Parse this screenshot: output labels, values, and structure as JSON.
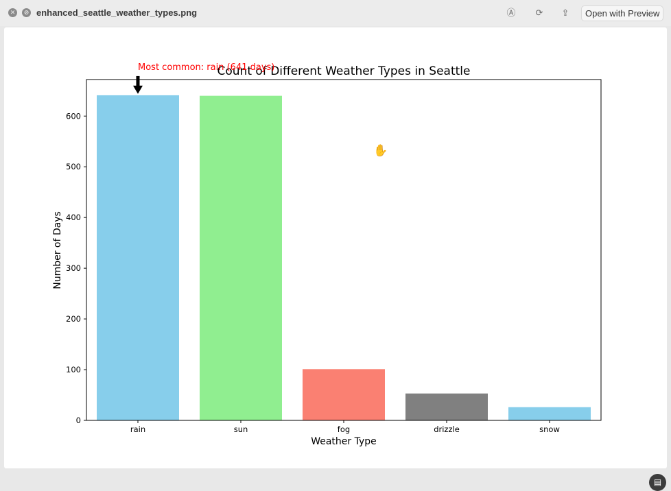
{
  "window": {
    "title": "enhanced_seattle_weather_types.png",
    "open_with_label": "Open with Preview",
    "icons": [
      "close-icon",
      "minimize-icon",
      "markup-icon",
      "rotate-icon",
      "share-icon",
      "live-text-icon",
      "hand-cursor-icon"
    ]
  },
  "chart_data": {
    "type": "bar",
    "title": "Count of Different Weather Types in Seattle",
    "xlabel": "Weather Type",
    "ylabel": "Number of Days",
    "categories": [
      "rain",
      "sun",
      "fog",
      "drizzle",
      "snow"
    ],
    "values": [
      641,
      640,
      101,
      53,
      26
    ],
    "colors": [
      "#87ceeb",
      "#90ee90",
      "#fa8072",
      "#808080",
      "#87ceeb"
    ],
    "ylim": [
      0,
      672
    ],
    "yticks": [
      0,
      100,
      200,
      300,
      400,
      500,
      600
    ],
    "grid": false,
    "annotation": {
      "text": "Most common: rain (641 days)",
      "category": "rain",
      "value": 641,
      "color": "#ff0000"
    }
  }
}
